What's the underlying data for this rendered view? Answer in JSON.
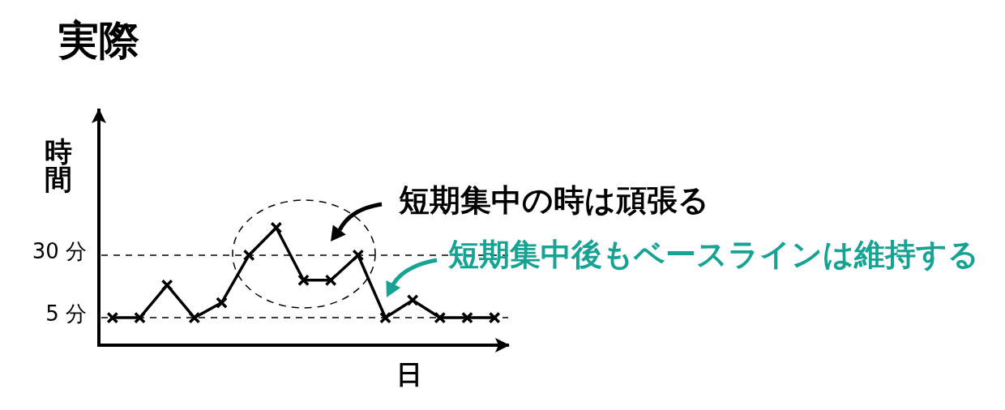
{
  "chart_data": {
    "type": "line",
    "title": "実際",
    "xlabel": "日",
    "ylabel": "時間",
    "categories": [
      null,
      null,
      null,
      null,
      null,
      null,
      null,
      null,
      null,
      null,
      null,
      null,
      null,
      null,
      null
    ],
    "series": [
      {
        "color": "#000000",
        "values": [
          5,
          5,
          18,
          5,
          11,
          30,
          41,
          20,
          20,
          30,
          5,
          12,
          5,
          5,
          5
        ]
      }
    ],
    "ylim": [
      -6,
      88
    ],
    "yticks": [
      {
        "value": 5,
        "label": "5 分"
      },
      {
        "value": 30,
        "label": "30 分"
      }
    ],
    "marker": "cross",
    "line_style": "solid",
    "ref_lines": [
      {
        "axis": "y",
        "value": 30,
        "line_style": "dashed",
        "color": "#000000"
      },
      {
        "axis": "y",
        "value": 5,
        "line_style": "dashed",
        "color": "#000000"
      }
    ],
    "annotations": [
      "短期集中の時は頑張る",
      "短期集中後もベースラインは維持する"
    ]
  }
}
